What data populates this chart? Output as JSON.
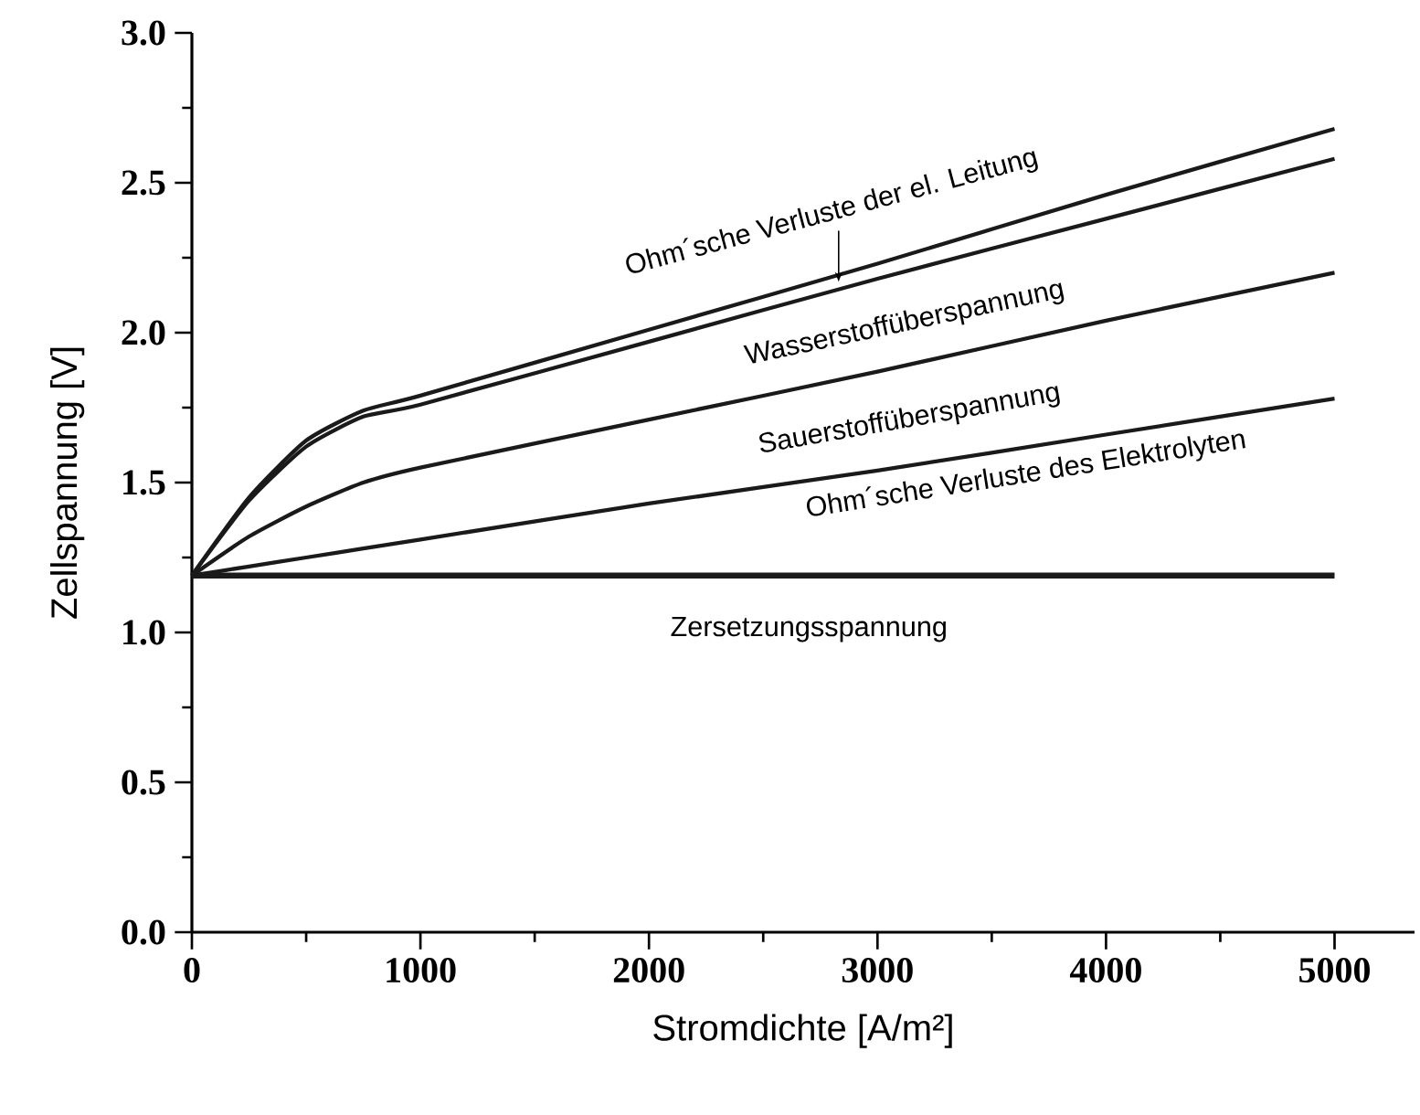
{
  "chart_data": {
    "type": "line",
    "xlabel": "Stromdichte [A/m²]",
    "ylabel": "Zellspannung [V]",
    "x": [
      0,
      250,
      500,
      750,
      1000,
      2000,
      3000,
      4000,
      5000
    ],
    "xlim": [
      0,
      5350
    ],
    "ylim": [
      0,
      3
    ],
    "xticks": [
      0,
      1000,
      2000,
      3000,
      4000,
      5000
    ],
    "yticks": [
      {
        "value": 0,
        "label": "0.0"
      },
      {
        "value": 0.5,
        "label": "0.5"
      },
      {
        "value": 1,
        "label": "1.0"
      },
      {
        "value": 1.5,
        "label": "1.5"
      },
      {
        "value": 2,
        "label": "2.0"
      },
      {
        "value": 2.5,
        "label": "2.5"
      },
      {
        "value": 3,
        "label": "3.0"
      }
    ],
    "marker": "none",
    "line_style": "solid",
    "series": [
      {
        "name": "Ohm´sche Verluste der el. Leitung",
        "color": "#1a1a1a",
        "values": [
          1.19,
          1.45,
          1.64,
          1.74,
          1.79,
          2.01,
          2.23,
          2.46,
          2.68
        ]
      },
      {
        "name": "Wasserstoffüberspannung",
        "color": "#1a1a1a",
        "values": [
          1.19,
          1.44,
          1.62,
          1.72,
          1.76,
          1.97,
          2.18,
          2.38,
          2.58
        ]
      },
      {
        "name": "Sauerstoffüberspannung",
        "color": "#1a1a1a",
        "values": [
          1.19,
          1.32,
          1.42,
          1.5,
          1.55,
          1.71,
          1.87,
          2.04,
          2.2
        ]
      },
      {
        "name": "Ohm´sche Verluste des Elektrolyten",
        "color": "#1a1a1a",
        "values": [
          1.19,
          1.22,
          1.25,
          1.28,
          1.31,
          1.43,
          1.54,
          1.66,
          1.78
        ]
      },
      {
        "name": "Zersetzungsspannung",
        "color": "#1a1a1a",
        "values": [
          1.19,
          1.19,
          1.19,
          1.19,
          1.19,
          1.19,
          1.19,
          1.19,
          1.19
        ]
      }
    ]
  }
}
